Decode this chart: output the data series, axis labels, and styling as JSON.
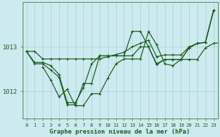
{
  "title": "Graphe pression niveau de la mer (hPa)",
  "background_color": "#cdeaf0",
  "grid_color": "#aad4d4",
  "line_color": "#1a5c1a",
  "ylim": [
    1011.4,
    1014.0
  ],
  "yticks": [
    1012,
    1013
  ],
  "ytick_labels": [
    "1012",
    "1013"
  ],
  "series": [
    [
      1012.9,
      1012.9,
      1012.73,
      1012.73,
      1012.73,
      1012.73,
      1012.73,
      1012.73,
      1012.73,
      1012.73,
      1012.78,
      1012.83,
      1012.88,
      1013.0,
      1013.08,
      1013.15,
      1012.78,
      1012.82,
      1012.82,
      1012.82,
      1013.0,
      1013.08,
      1013.1,
      1013.82
    ],
    [
      1012.9,
      1012.65,
      1012.65,
      1012.58,
      1012.38,
      1011.75,
      1011.75,
      1012.08,
      1012.62,
      1012.8,
      1012.8,
      1012.8,
      1012.8,
      1012.8,
      1013.0,
      1013.0,
      1012.62,
      1012.72,
      1012.72,
      1012.72,
      1012.98,
      1013.08,
      1013.1,
      1013.82
    ],
    [
      1012.9,
      1012.62,
      1012.62,
      1012.48,
      1012.32,
      1011.7,
      1011.7,
      1012.18,
      1012.18,
      1012.8,
      1012.8,
      1012.8,
      1012.8,
      1013.35,
      1013.35,
      1013.0,
      1012.6,
      1012.72,
      1012.72,
      1012.72,
      1012.98,
      1013.08,
      1013.1,
      1013.82
    ],
    [
      1012.55,
      1012.25,
      1011.88,
      1012.05,
      1011.68,
      1011.68,
      1011.95,
      1011.95,
      1012.3,
      1012.62,
      1012.73,
      1012.73,
      1012.73,
      1013.35,
      1013.05,
      1012.62,
      1012.58,
      1012.72,
      1012.72,
      1012.72,
      1012.98,
      1013.08,
      1013.1,
      1013.82
    ]
  ],
  "series_starts": [
    0,
    0,
    0,
    2
  ]
}
